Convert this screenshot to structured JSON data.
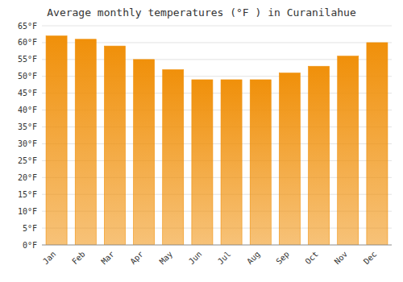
{
  "chart_data": {
    "type": "bar",
    "title": "Average monthly temperatures (°F ) in Curanilahue",
    "categories": [
      "Jan",
      "Feb",
      "Mar",
      "Apr",
      "May",
      "Jun",
      "Jul",
      "Aug",
      "Sep",
      "Oct",
      "Nov",
      "Dec"
    ],
    "values": [
      62,
      61,
      59,
      55,
      52,
      49,
      49,
      49,
      51,
      53,
      56,
      60
    ],
    "color": "#F0900A",
    "ylim": [
      0,
      65
    ],
    "yticks": [
      {
        "value": 0,
        "label": "0°F"
      },
      {
        "value": 5,
        "label": "5°F"
      },
      {
        "value": 10,
        "label": "10°F"
      },
      {
        "value": 15,
        "label": "15°F"
      },
      {
        "value": 20,
        "label": "20°F"
      },
      {
        "value": 25,
        "label": "25°F"
      },
      {
        "value": 30,
        "label": "30°F"
      },
      {
        "value": 35,
        "label": "35°F"
      },
      {
        "value": 40,
        "label": "40°F"
      },
      {
        "value": 45,
        "label": "45°F"
      },
      {
        "value": 50,
        "label": "50°F"
      },
      {
        "value": 55,
        "label": "55°F"
      },
      {
        "value": 60,
        "label": "60°F"
      },
      {
        "value": 65,
        "label": "65°F"
      }
    ],
    "grid": true
  }
}
